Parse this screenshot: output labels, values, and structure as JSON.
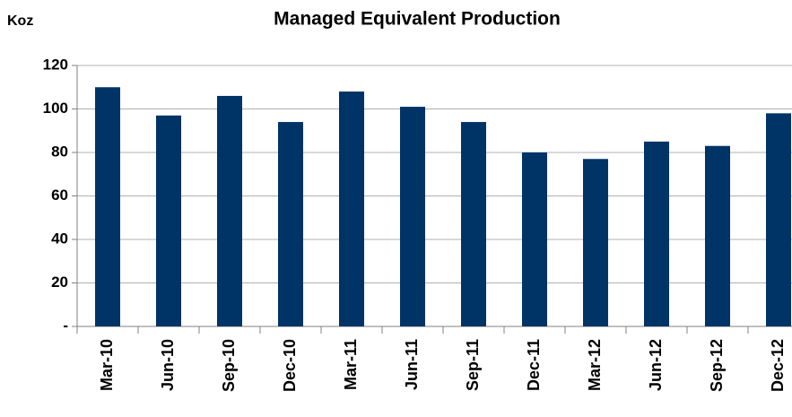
{
  "chart_data": {
    "type": "bar",
    "title": "Managed Equivalent Production",
    "y_label": "Koz",
    "categories": [
      "Mar-10",
      "Jun-10",
      "Sep-10",
      "Dec-10",
      "Mar-11",
      "Jun-11",
      "Sep-11",
      "Dec-11",
      "Mar-12",
      "Jun-12",
      "Sep-12",
      "Dec-12"
    ],
    "values": [
      110,
      97,
      106,
      94,
      108,
      101,
      94,
      80,
      77,
      85,
      83,
      98
    ],
    "color": "#003366",
    "ylim": [
      0,
      120
    ],
    "yticks": [
      {
        "value": 0,
        "label": "-"
      },
      20,
      40,
      60,
      80,
      100,
      120
    ],
    "grid": true
  }
}
